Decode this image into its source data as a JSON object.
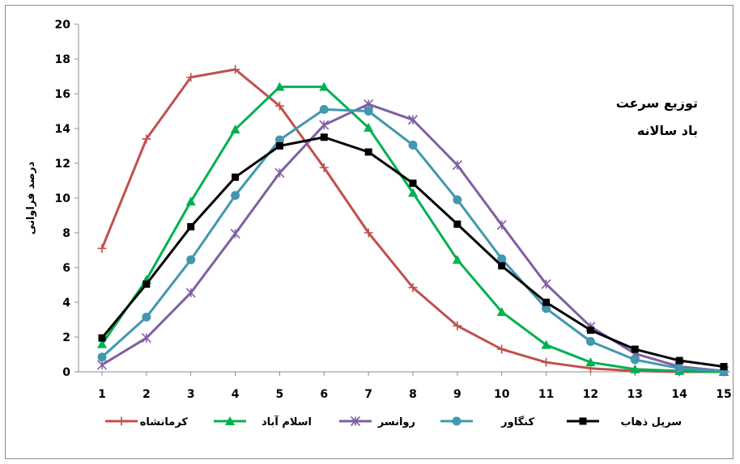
{
  "chart_data": {
    "type": "line",
    "title_lines": [
      "توزیع سرعت",
      "باد سالانه"
    ],
    "xlabel": "",
    "ylabel": "درصد فراوانی",
    "x": [
      1,
      2,
      3,
      4,
      5,
      6,
      7,
      8,
      9,
      10,
      11,
      12,
      13,
      14,
      15
    ],
    "xlim": [
      1,
      15
    ],
    "ylim": [
      0,
      20
    ],
    "yticks": [
      0,
      2,
      4,
      6,
      8,
      10,
      12,
      14,
      16,
      18,
      20
    ],
    "grid": false,
    "legend_position": "bottom",
    "series": [
      {
        "name": "کرمانشاه",
        "color": "#c0504d",
        "marker": "plus",
        "values": [
          7.1,
          13.4,
          16.95,
          17.4,
          15.3,
          11.75,
          8.0,
          4.85,
          2.65,
          1.3,
          0.55,
          0.2,
          0.05,
          0.0,
          0.0
        ]
      },
      {
        "name": "اسلام آباد",
        "color": "#00b050",
        "marker": "triangle",
        "values": [
          1.6,
          5.3,
          9.8,
          13.95,
          16.4,
          16.4,
          14.05,
          10.3,
          6.45,
          3.45,
          1.55,
          0.55,
          0.15,
          0.05,
          0.0
        ]
      },
      {
        "name": "روانسر",
        "color": "#7f5fa2",
        "marker": "star",
        "values": [
          0.4,
          1.95,
          4.55,
          7.95,
          11.45,
          14.2,
          15.4,
          14.5,
          11.9,
          8.45,
          5.05,
          2.6,
          1.05,
          0.3,
          0.05
        ]
      },
      {
        "name": "کنگاور",
        "color": "#4198af",
        "marker": "circle",
        "values": [
          0.85,
          3.15,
          6.45,
          10.15,
          13.35,
          15.1,
          15.0,
          13.05,
          9.9,
          6.5,
          3.65,
          1.75,
          0.7,
          0.2,
          0.05
        ]
      },
      {
        "name": "سرپل ذهاب",
        "color": "#000000",
        "marker": "square",
        "values": [
          1.95,
          5.05,
          8.35,
          11.2,
          13.0,
          13.5,
          12.65,
          10.85,
          8.5,
          6.1,
          4.0,
          2.4,
          1.3,
          0.65,
          0.3
        ]
      }
    ]
  }
}
